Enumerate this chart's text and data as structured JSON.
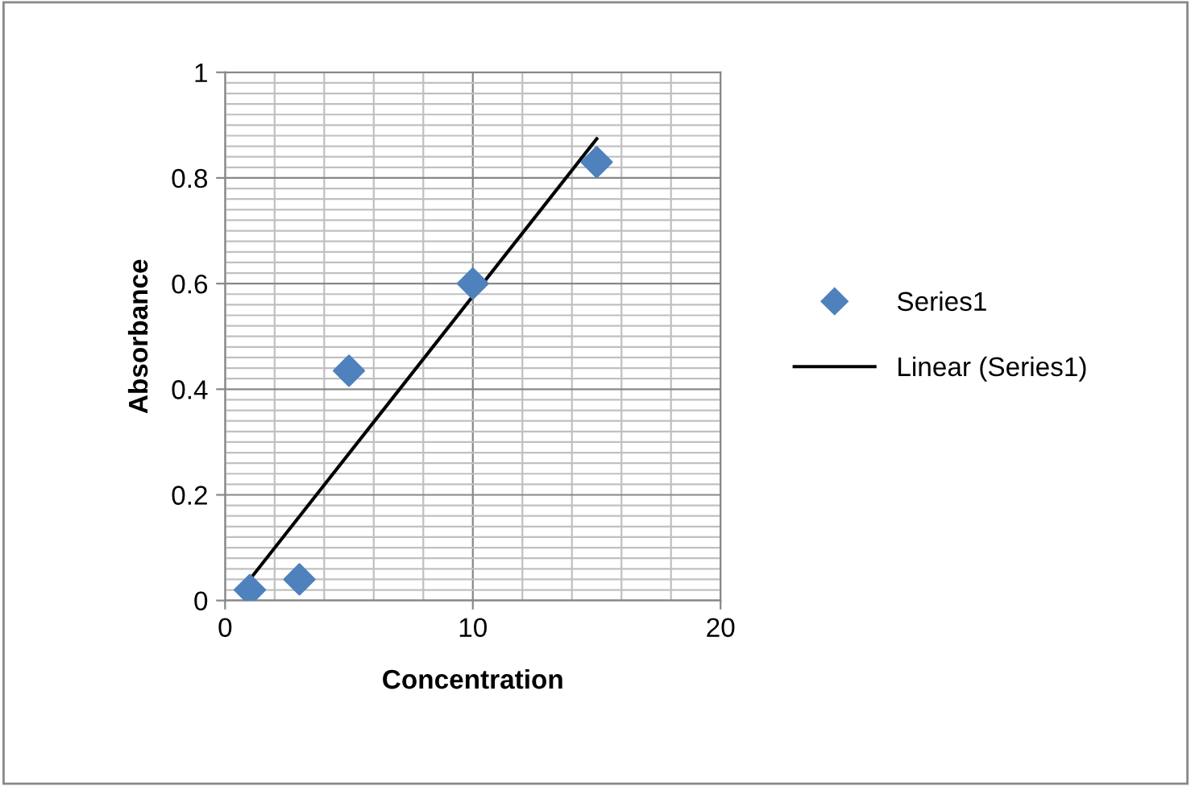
{
  "chart_data": {
    "type": "scatter",
    "xlabel": "Concentration",
    "ylabel": "Absorbance",
    "xlim": [
      0,
      20
    ],
    "xticks": [
      0,
      10,
      20
    ],
    "ylim": [
      0,
      1
    ],
    "yticks": [
      0,
      0.2,
      0.4,
      0.6,
      0.8,
      1
    ],
    "grid": true,
    "legend": "right",
    "series": [
      {
        "name": "Series1",
        "color": "#4f81bd",
        "marker": "diamond",
        "x": [
          1,
          3,
          5,
          10,
          15
        ],
        "values": [
          0.02,
          0.04,
          0.435,
          0.6,
          0.83
        ]
      },
      {
        "name": "Linear (Series1)",
        "type": "line",
        "color": "#000000",
        "line_style": "solid",
        "marker": "none",
        "x": [
          1,
          15
        ],
        "values": [
          0.04,
          0.874
        ]
      }
    ]
  }
}
